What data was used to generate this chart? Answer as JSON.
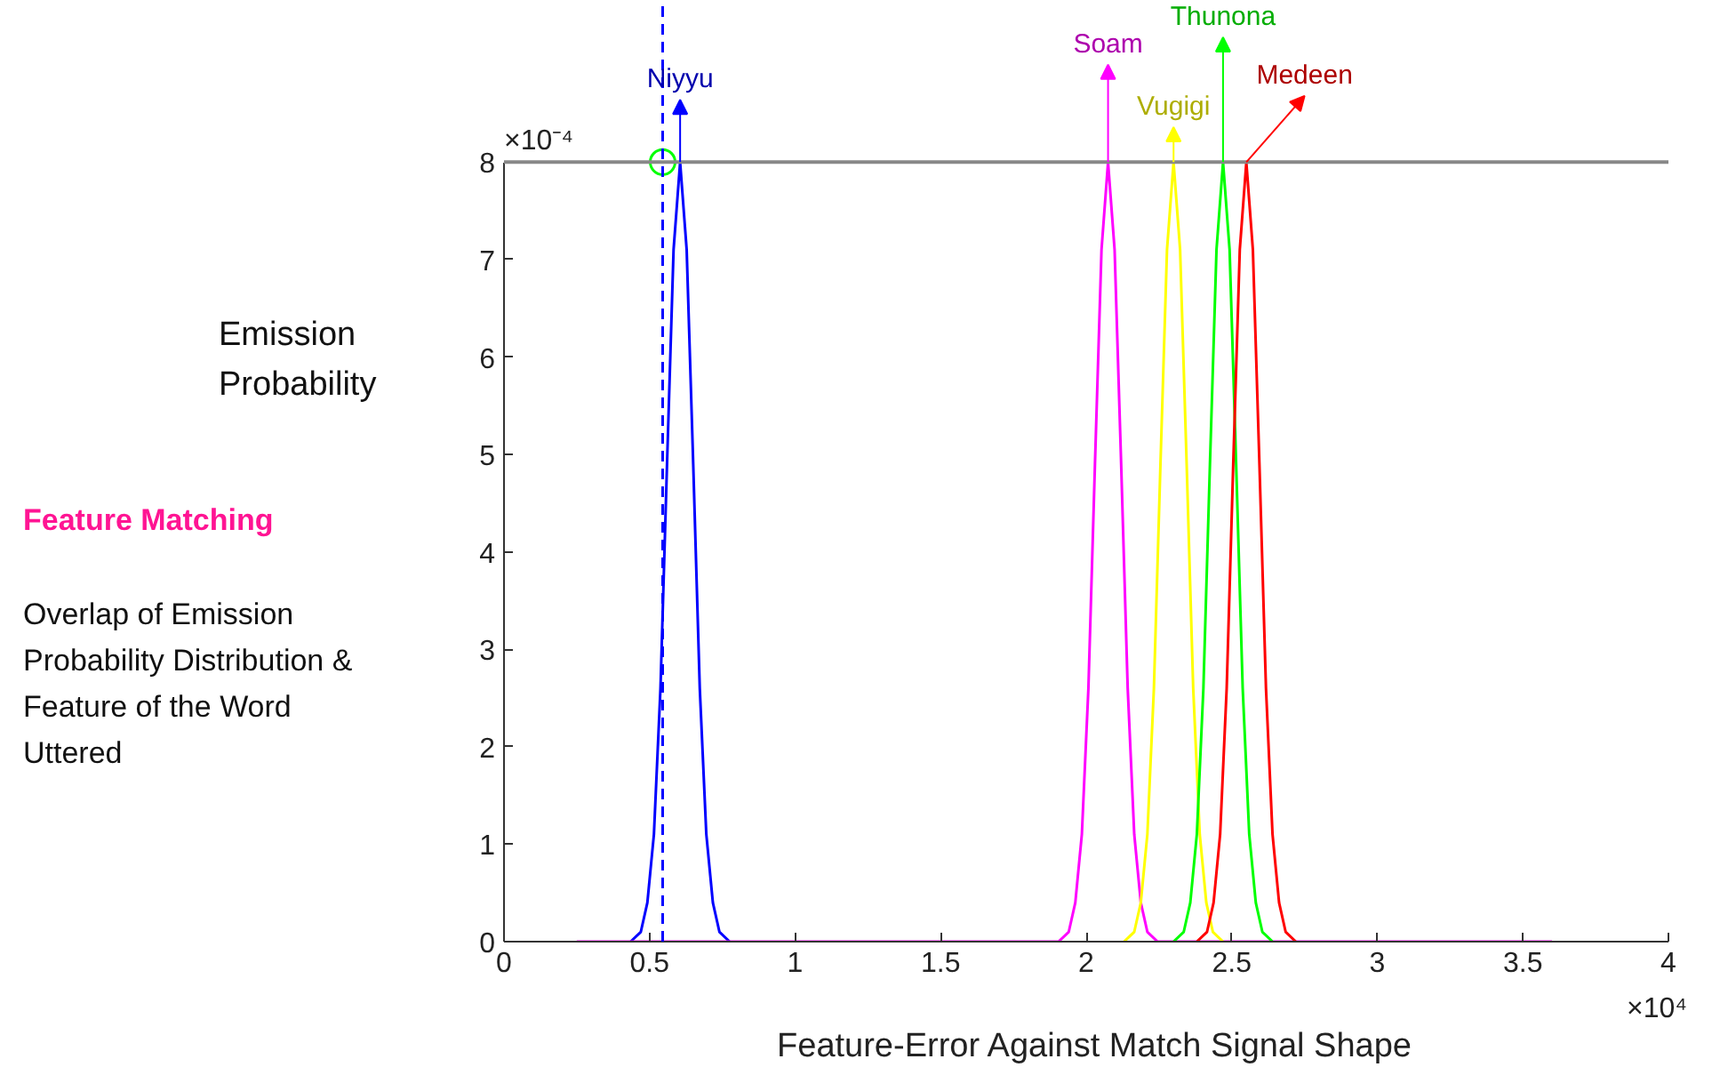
{
  "chart_data": {
    "type": "line",
    "title": "Feature Matching",
    "subtitle": "Overlap of Emission Probability Distribution & Feature of the Word Uttered",
    "xlabel": "Feature-Error Against Match Signal Shape",
    "ylabel": "Emission Probability",
    "annotations": [
      "×10⁻⁴",
      "×10⁴"
    ],
    "xlim": [
      0,
      4
    ],
    "ylim": [
      0,
      8
    ],
    "xticks": [
      0,
      0.5,
      1,
      1.5,
      2,
      2.5,
      3,
      3.5,
      4
    ],
    "yticks": [
      0,
      1,
      2,
      3,
      4,
      5,
      6,
      7,
      8
    ],
    "grid": false,
    "ref_lines": [
      {
        "axis": "x",
        "value": 0.545,
        "color": "#0000ff",
        "line_style": "dashed"
      }
    ],
    "series": [
      {
        "name": "Niyyu",
        "color": "#0000ff",
        "x": [
          0.435,
          0.47,
          0.4925,
          0.515,
          0.5375,
          0.56,
          0.5825,
          0.605,
          0.6275,
          0.65,
          0.6725,
          0.695,
          0.7175,
          0.74,
          0.775
        ],
        "values": [
          0,
          0.1,
          0.4,
          1.1,
          2.6,
          4.9,
          7.1,
          8,
          7.1,
          4.9,
          2.6,
          1.1,
          0.4,
          0.1,
          0
        ]
      },
      {
        "name": "Soam",
        "color": "#ff00ff",
        "x": [
          0.25,
          1.905,
          1.94,
          1.9625,
          1.985,
          2.0075,
          2.03,
          2.0525,
          2.075,
          2.0975,
          2.12,
          2.1425,
          2.165,
          2.1875,
          2.21,
          2.245,
          3.6
        ],
        "values": [
          0,
          0,
          0.1,
          0.4,
          1.1,
          2.6,
          4.9,
          7.1,
          8,
          7.1,
          4.9,
          2.6,
          1.1,
          0.4,
          0.1,
          0,
          0
        ]
      },
      {
        "name": "Vugigi",
        "color": "#ffff00",
        "x": [
          2.13,
          2.165,
          2.1875,
          2.21,
          2.2325,
          2.255,
          2.2775,
          2.3,
          2.3225,
          2.345,
          2.3675,
          2.39,
          2.4125,
          2.435,
          2.47
        ],
        "values": [
          0,
          0.1,
          0.4,
          1.1,
          2.6,
          4.9,
          7.1,
          8,
          7.1,
          4.9,
          2.6,
          1.1,
          0.4,
          0.1,
          0
        ]
      },
      {
        "name": "Thunona",
        "color": "#00ff00",
        "x": [
          2.3,
          2.335,
          2.3575,
          2.38,
          2.4025,
          2.425,
          2.4475,
          2.47,
          2.4925,
          2.515,
          2.5375,
          2.56,
          2.5825,
          2.605,
          2.64
        ],
        "values": [
          0,
          0.1,
          0.4,
          1.1,
          2.6,
          4.9,
          7.1,
          8,
          7.1,
          4.9,
          2.6,
          1.1,
          0.4,
          0.1,
          0
        ]
      },
      {
        "name": "Medeen",
        "color": "#ff0000",
        "x": [
          2.38,
          2.415,
          2.4375,
          2.46,
          2.4825,
          2.505,
          2.5275,
          2.55,
          2.5725,
          2.595,
          2.6175,
          2.64,
          2.6625,
          2.685,
          2.72
        ],
        "values": [
          0,
          0.1,
          0.4,
          1.1,
          2.6,
          4.9,
          7.1,
          8,
          7.1,
          4.9,
          2.6,
          1.1,
          0.4,
          0.1,
          0
        ]
      },
      {
        "type": "scatter",
        "marker": "circle",
        "color": "#00ff00",
        "x": [
          0.545
        ],
        "values": [
          8
        ]
      }
    ]
  }
}
